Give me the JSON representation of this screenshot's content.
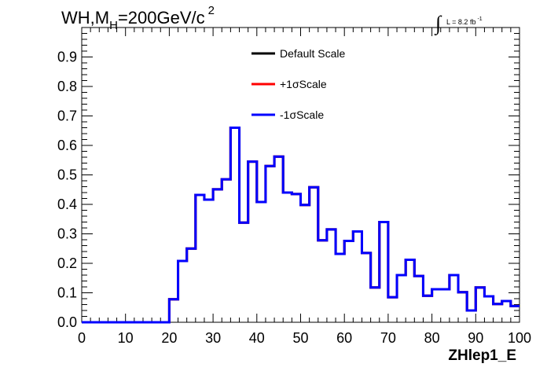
{
  "title": {
    "main": "WH,M",
    "subscript": "H",
    "rest": "=200GeV/c",
    "superscript": "2"
  },
  "lumi": {
    "integral": "∫",
    "text": "L = 8.2 fb",
    "superscript": "-1"
  },
  "chart_data": {
    "type": "histogram",
    "xlabel": "ZHlep1_E",
    "ylabel": "",
    "xlim": [
      0,
      100
    ],
    "ylim": [
      0,
      1.0
    ],
    "x_ticks": [
      "0",
      "10",
      "20",
      "30",
      "40",
      "50",
      "60",
      "70",
      "80",
      "90",
      "100"
    ],
    "y_ticks": [
      "0.0",
      "0.1",
      "0.2",
      "0.3",
      "0.4",
      "0.5",
      "0.6",
      "0.7",
      "0.8",
      "0.9"
    ],
    "bin_edges": [
      0,
      2,
      4,
      6,
      8,
      10,
      12,
      14,
      16,
      18,
      20,
      22,
      24,
      26,
      28,
      30,
      32,
      34,
      36,
      38,
      40,
      42,
      44,
      46,
      48,
      50,
      52,
      54,
      56,
      58,
      60,
      62,
      64,
      66,
      68,
      70,
      72,
      74,
      76,
      78,
      80,
      82,
      84,
      86,
      88,
      90,
      92,
      94,
      96,
      98,
      100
    ],
    "legend_position": "top-center",
    "series": [
      {
        "name": "Default Scale",
        "color": "#000000",
        "values": [
          0,
          0,
          0,
          0,
          0,
          0,
          0,
          0,
          0,
          0,
          0.078,
          0.208,
          0.25,
          0.432,
          0.416,
          0.451,
          0.485,
          0.66,
          0.338,
          0.545,
          0.408,
          0.53,
          0.562,
          0.44,
          0.435,
          0.398,
          0.458,
          0.278,
          0.315,
          0.232,
          0.276,
          0.308,
          0.235,
          0.118,
          0.34,
          0.085,
          0.16,
          0.212,
          0.157,
          0.09,
          0.112,
          0.112,
          0.16,
          0.102,
          0.04,
          0.118,
          0.088,
          0.062,
          0.072,
          0.055
        ]
      },
      {
        "name": "+1σScale",
        "color": "#ff0000",
        "values": [
          0,
          0,
          0,
          0,
          0,
          0,
          0,
          0,
          0,
          0,
          0.078,
          0.208,
          0.25,
          0.432,
          0.416,
          0.451,
          0.485,
          0.66,
          0.338,
          0.545,
          0.408,
          0.53,
          0.562,
          0.44,
          0.435,
          0.398,
          0.458,
          0.278,
          0.315,
          0.232,
          0.276,
          0.308,
          0.235,
          0.118,
          0.34,
          0.085,
          0.16,
          0.212,
          0.157,
          0.09,
          0.112,
          0.112,
          0.16,
          0.102,
          0.04,
          0.118,
          0.088,
          0.062,
          0.072,
          0.055
        ]
      },
      {
        "name": "-1σScale",
        "color": "#0000ff",
        "values": [
          0,
          0,
          0,
          0,
          0,
          0,
          0,
          0,
          0,
          0,
          0.078,
          0.208,
          0.25,
          0.432,
          0.416,
          0.451,
          0.485,
          0.66,
          0.338,
          0.545,
          0.408,
          0.53,
          0.562,
          0.44,
          0.435,
          0.398,
          0.458,
          0.278,
          0.315,
          0.232,
          0.276,
          0.308,
          0.235,
          0.118,
          0.34,
          0.085,
          0.16,
          0.212,
          0.157,
          0.09,
          0.112,
          0.112,
          0.16,
          0.102,
          0.04,
          0.118,
          0.088,
          0.062,
          0.072,
          0.055
        ]
      }
    ]
  }
}
